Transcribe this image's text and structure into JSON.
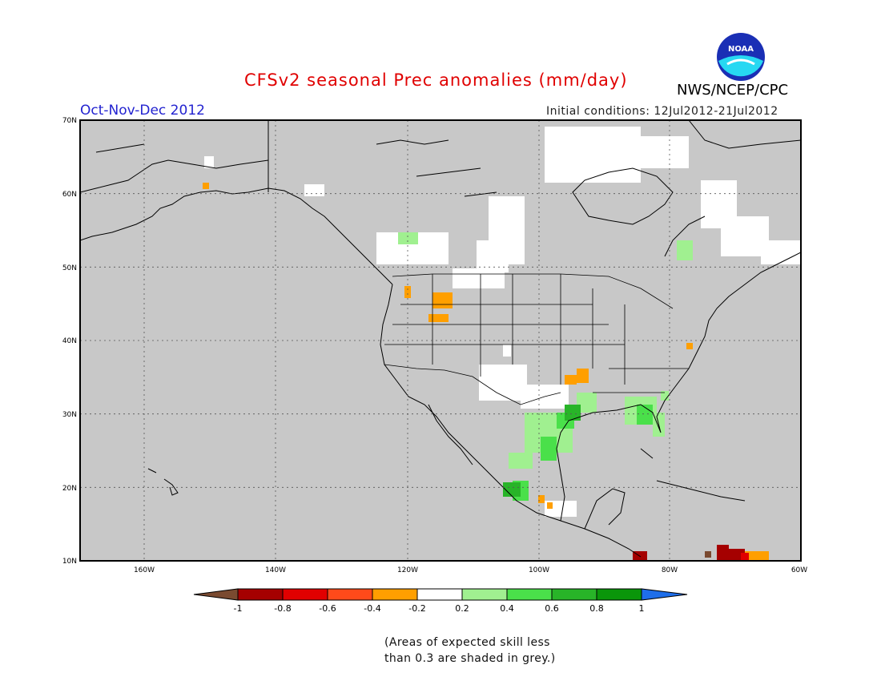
{
  "header": {
    "title": "CFSv2 seasonal Prec anomalies (mm/day)",
    "season": "Oct-Nov-Dec 2012",
    "initial_conditions": "Initial conditions: 12Jul2012-21Jul2012",
    "agency": "NWS/NCEP/CPC",
    "logo_text": "NOAA"
  },
  "map": {
    "lat_labels": [
      "70N",
      "60N",
      "50N",
      "40N",
      "30N",
      "20N",
      "10N"
    ],
    "lon_labels": [
      "160W",
      "140W",
      "120W",
      "100W",
      "80W",
      "60W"
    ],
    "colors": {
      "skill_mask": "#c8c8c8",
      "coast": "#000000",
      "grid": "#555555"
    }
  },
  "colorbar": {
    "labels": [
      "-1",
      "-0.8",
      "-0.6",
      "-0.4",
      "-0.2",
      "0.2",
      "0.4",
      "0.6",
      "0.8",
      "1"
    ],
    "colors": [
      "#7a4a30",
      "#a50000",
      "#e10000",
      "#ff4a1a",
      "#ff9f00",
      "#ffffff",
      "#a0f090",
      "#4ae04a",
      "#28b428",
      "#0a960a",
      "#1e6eea"
    ]
  },
  "footnote": {
    "line1": "(Areas of expected skill less",
    "line2": "than 0.3 are shaded in grey.)"
  }
}
